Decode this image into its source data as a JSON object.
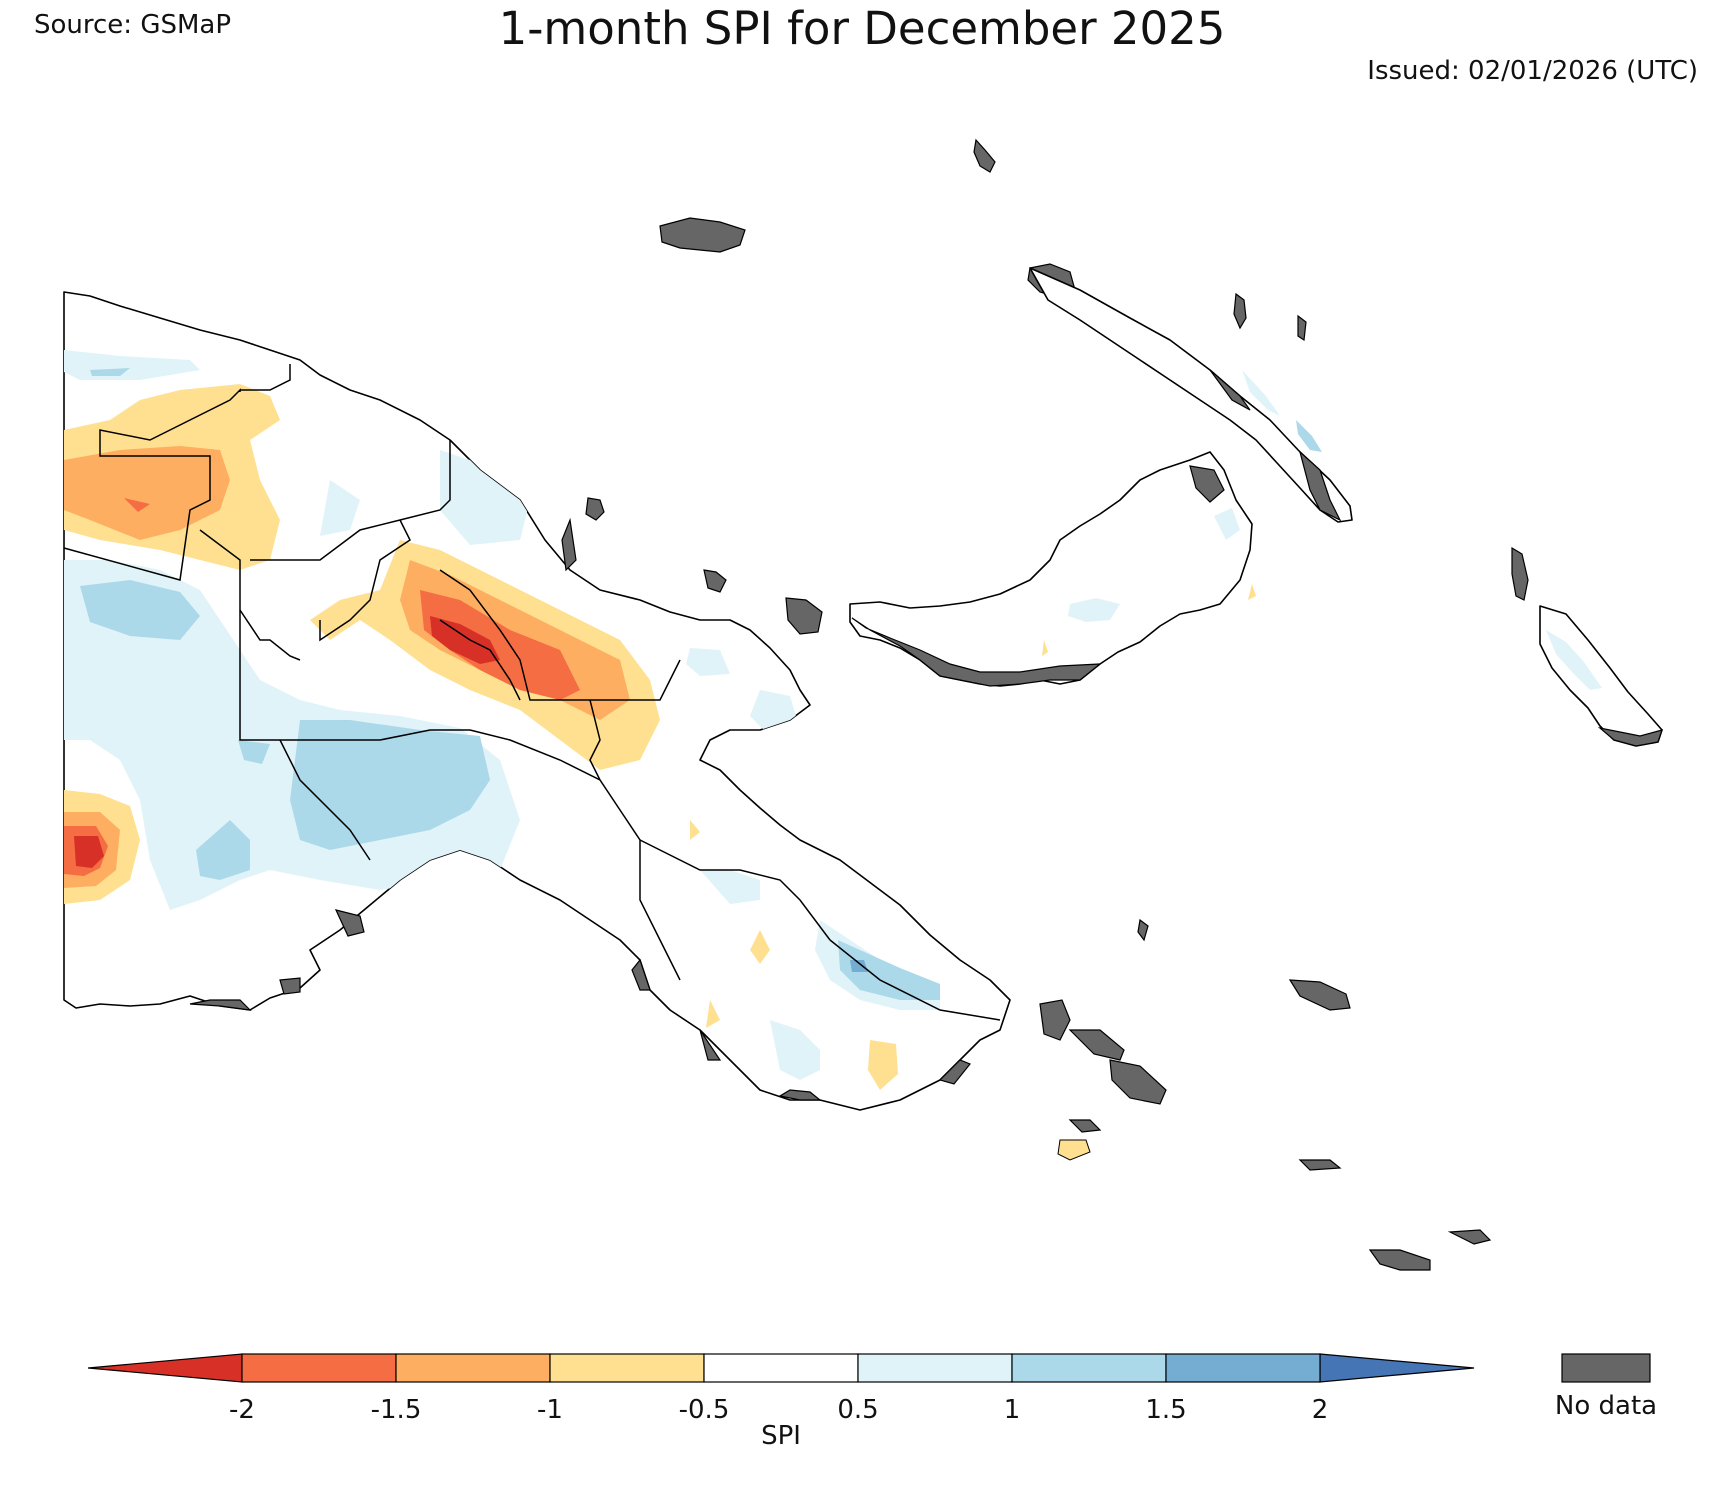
{
  "header": {
    "source": "Source: GSMaP",
    "title": "1-month SPI for December 2025",
    "issued": "Issued: 02/01/2026 (UTC)"
  },
  "legend": {
    "colorbar_label": "SPI",
    "ticks": [
      "-2",
      "-1.5",
      "-1",
      "-0.5",
      "0.5",
      "1",
      "1.5",
      "2"
    ],
    "classes": [
      {
        "range": "< -2",
        "color": "#d73027"
      },
      {
        "range": "-2 to -1.5",
        "color": "#f46d43"
      },
      {
        "range": "-1.5 to -1",
        "color": "#fdae61"
      },
      {
        "range": "-1 to -0.5",
        "color": "#fee090"
      },
      {
        "range": "-0.5 to 0.5",
        "color": "#ffffff"
      },
      {
        "range": "0.5 to 1",
        "color": "#e0f3f8"
      },
      {
        "range": "1 to 1.5",
        "color": "#abd9e9"
      },
      {
        "range": "1.5 to 2",
        "color": "#74add1"
      },
      {
        "range": "> 2",
        "color": "#4575b4"
      }
    ],
    "nodata_label": "No data",
    "nodata_color": "#666666"
  }
}
